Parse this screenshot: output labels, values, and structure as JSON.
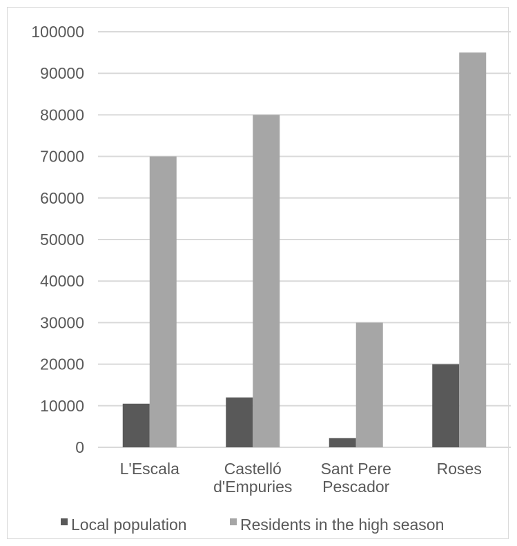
{
  "chart_data": {
    "type": "bar",
    "title": "",
    "xlabel": "",
    "ylabel": "",
    "categories": [
      [
        "L'Escala"
      ],
      [
        "Castelló",
        "d'Empuries"
      ],
      [
        "Sant Pere",
        "Pescador"
      ],
      [
        "Roses"
      ]
    ],
    "series": [
      {
        "name": "Local population",
        "color": "#595959",
        "values": [
          10500,
          12000,
          2200,
          20000
        ]
      },
      {
        "name": "Residents in the high season",
        "color": "#a6a6a6",
        "values": [
          70000,
          80000,
          30000,
          95000
        ]
      }
    ],
    "ylim": [
      0,
      100000
    ],
    "yticks": [
      "0",
      "10000",
      "20000",
      "30000",
      "40000",
      "50000",
      "60000",
      "70000",
      "80000",
      "90000",
      "100000"
    ],
    "grid": true,
    "legend_position": "bottom",
    "colors": {
      "grid": "#d9d9d9",
      "text": "#595959"
    }
  }
}
